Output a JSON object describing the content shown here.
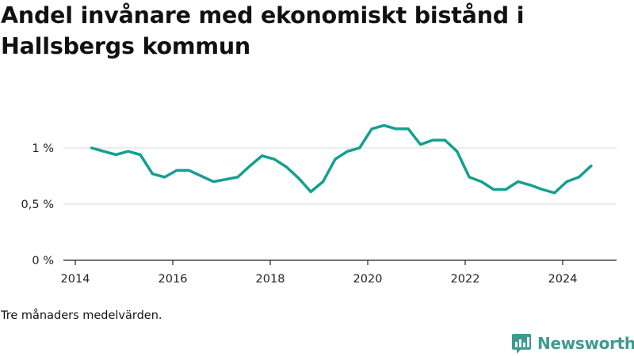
{
  "title": "Andel invånare med ekonomiskt bistånd i Hallsbergs kommun",
  "note": "Tre månaders medelvärden.",
  "brand": {
    "name": "Newsworthy",
    "icon": "newsworthy-logo-icon",
    "color": "#3d9b8d"
  },
  "colors": {
    "line": "#14a090",
    "grid": "#d9d9d9",
    "axis": "#222222",
    "text": "#222222"
  },
  "chart_data": {
    "type": "line",
    "title": "Andel invånare med ekonomiskt bistånd i Hallsbergs kommun",
    "xlabel": "",
    "ylabel": "",
    "x_ticks": [
      "2014",
      "2016",
      "2018",
      "2020",
      "2022",
      "2024"
    ],
    "y_ticks": [
      "0 %",
      "0,5 %",
      "1 %"
    ],
    "xlim": [
      "2014-01",
      "2025-02"
    ],
    "ylim": [
      0,
      1.3
    ],
    "grid": "horizontal",
    "legend": "none",
    "series": [
      {
        "x": [
          "2014-05",
          "2014-08",
          "2014-11",
          "2015-02",
          "2015-05",
          "2015-08",
          "2015-11",
          "2016-02",
          "2016-05",
          "2016-08",
          "2016-11",
          "2017-02",
          "2017-05",
          "2017-08",
          "2017-11",
          "2018-02",
          "2018-05",
          "2018-08",
          "2018-11",
          "2019-02",
          "2019-05",
          "2019-08",
          "2019-11",
          "2020-02",
          "2020-05",
          "2020-08",
          "2020-11",
          "2021-02",
          "2021-05",
          "2021-08",
          "2021-11",
          "2022-02",
          "2022-05",
          "2022-08",
          "2022-11",
          "2023-02",
          "2023-05",
          "2023-08",
          "2023-11",
          "2024-02",
          "2024-05",
          "2024-08"
        ],
        "y": [
          1.0,
          0.97,
          0.94,
          0.97,
          0.94,
          0.77,
          0.74,
          0.8,
          0.8,
          0.75,
          0.7,
          0.72,
          0.74,
          0.84,
          0.93,
          0.9,
          0.83,
          0.73,
          0.61,
          0.7,
          0.9,
          0.97,
          1.0,
          1.17,
          1.2,
          1.17,
          1.17,
          1.03,
          1.07,
          1.07,
          0.97,
          0.74,
          0.7,
          0.63,
          0.63,
          0.7,
          0.67,
          0.63,
          0.6,
          0.7,
          0.74,
          0.84
        ]
      }
    ]
  }
}
